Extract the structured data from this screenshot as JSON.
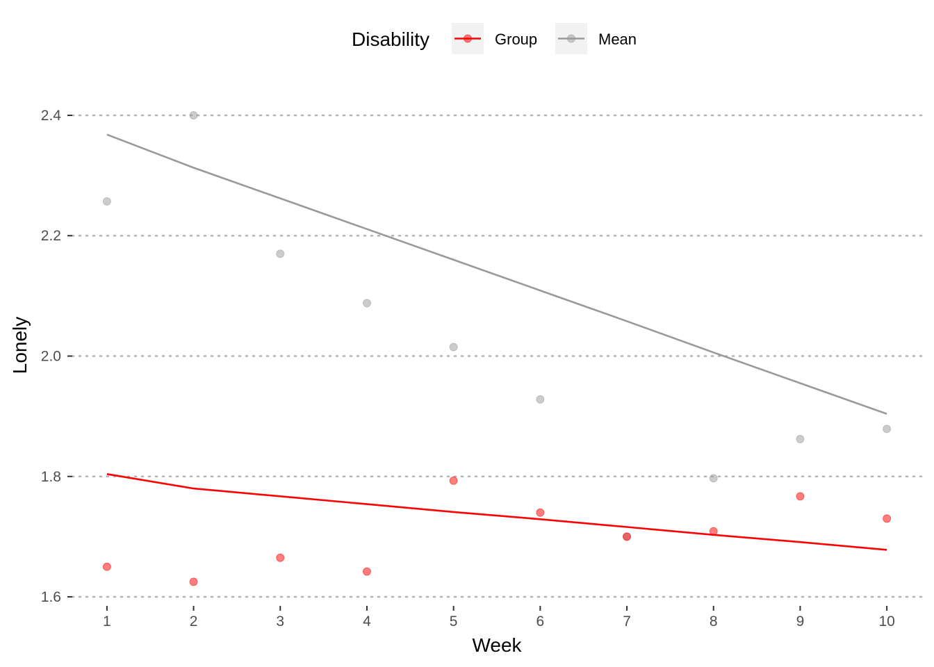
{
  "chart_data": {
    "type": "line",
    "title": "",
    "xlabel": "Week",
    "ylabel": "Lonely",
    "x": [
      1,
      2,
      3,
      4,
      5,
      6,
      7,
      8,
      9,
      10
    ],
    "xlim": [
      0.6,
      10.4
    ],
    "ylim": [
      1.585,
      2.43
    ],
    "yticks": [
      1.6,
      1.8,
      2.0,
      2.2,
      2.4
    ],
    "ytick_labels": [
      "1.6",
      "1.8",
      "2.0",
      "2.2",
      "2.4"
    ],
    "xtick_labels": [
      "1",
      "2",
      "3",
      "4",
      "5",
      "6",
      "7",
      "8",
      "9",
      "10"
    ],
    "grid": "horizontal dotted",
    "legend": {
      "title": "Disability",
      "position": "top",
      "entries": [
        "Group",
        "Mean"
      ]
    },
    "series": [
      {
        "name": "Group",
        "color": "#ff0000",
        "points": [
          1.65,
          1.625,
          1.665,
          1.642,
          1.793,
          1.74,
          1.7,
          1.709,
          1.767,
          1.73
        ],
        "line": [
          1.804,
          1.78,
          1.767,
          1.754,
          1.741,
          1.729,
          1.716,
          1.703,
          1.691,
          1.678
        ]
      },
      {
        "name": "Mean",
        "color": "#999999",
        "points": [
          2.257,
          2.4,
          2.17,
          2.088,
          2.015,
          1.928,
          1.7,
          1.797,
          1.862,
          1.879
        ],
        "line": [
          2.368,
          2.313,
          2.262,
          2.211,
          2.16,
          2.109,
          2.058,
          2.006,
          1.955,
          1.904
        ]
      }
    ]
  }
}
